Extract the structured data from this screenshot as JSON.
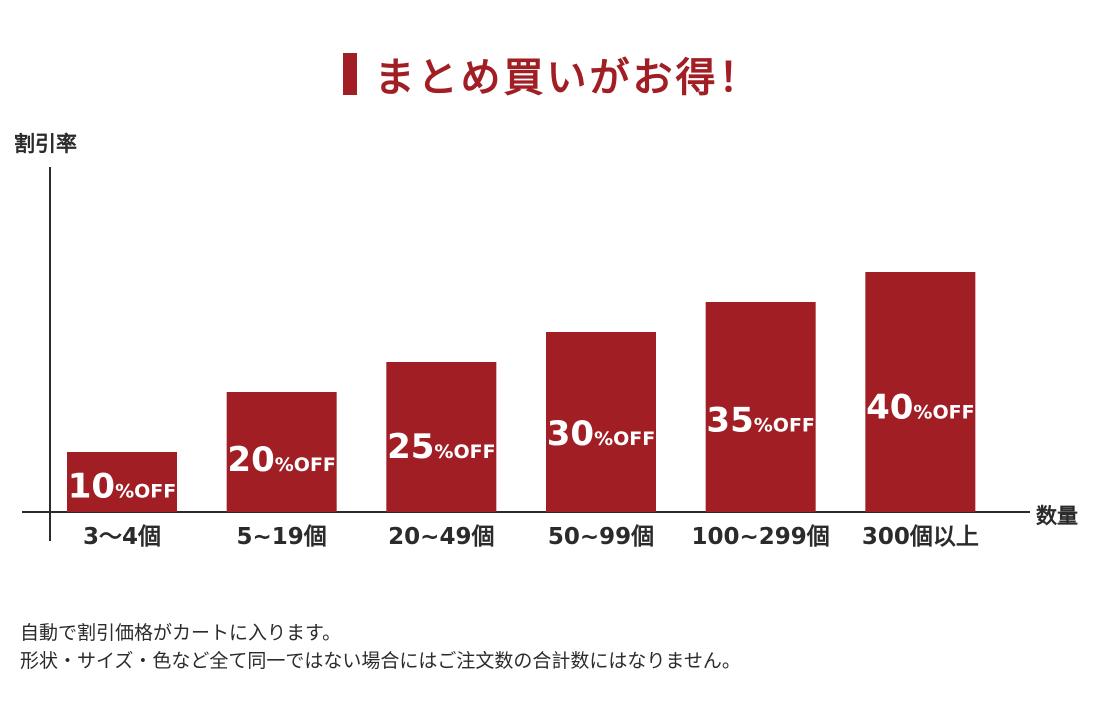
{
  "colors": {
    "bar": "#a01e24",
    "title": "#a01e24",
    "text": "#2b2b2b",
    "bar_label": "#ffffff",
    "axis": "#2b2b2b"
  },
  "chart_data": {
    "type": "bar",
    "title": "まとめ買いがお得！",
    "ylabel": "割引率",
    "xlabel": "数量",
    "categories": [
      "3〜4個",
      "5~19個",
      "20~49個",
      "50~99個",
      "100~299個",
      "300個以上"
    ],
    "values": [
      10,
      20,
      25,
      30,
      35,
      40
    ],
    "data_labels": [
      {
        "number": "10",
        "suffix": "%OFF"
      },
      {
        "number": "20",
        "suffix": "%OFF"
      },
      {
        "number": "25",
        "suffix": "%OFF"
      },
      {
        "number": "30",
        "suffix": "%OFF"
      },
      {
        "number": "35",
        "suffix": "%OFF"
      },
      {
        "number": "40",
        "suffix": "%OFF"
      }
    ],
    "ylim": [
      0,
      60
    ],
    "grid": false,
    "legend": "none"
  },
  "notes": [
    "自動で割引価格がカートに入ります。",
    "形状・サイズ・色など全て同一ではない場合にはご注文数の合計数にはなりません。"
  ]
}
